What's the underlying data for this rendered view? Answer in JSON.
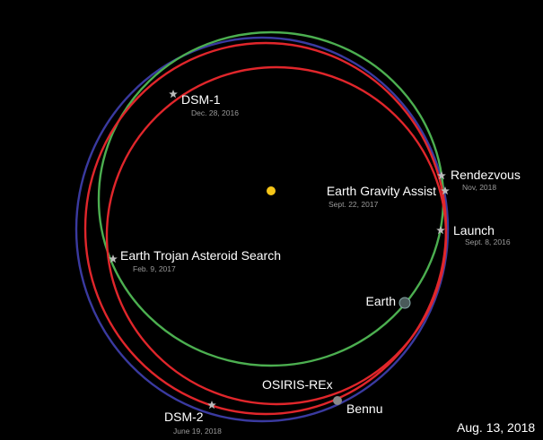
{
  "events": [
    {
      "label": "DSM-1",
      "date": "Dec. 28, 2016"
    },
    {
      "label": "Rendezvous",
      "date": "Nov, 2018"
    },
    {
      "label": "Earth Gravity Assist",
      "date": "Sept. 22, 2017"
    },
    {
      "label": "Launch",
      "date": "Sept. 8, 2016"
    },
    {
      "label": "Earth Trojan Asteroid Search",
      "date": "Feb. 9, 2017"
    },
    {
      "label": "DSM-2",
      "date": "June 19, 2018"
    }
  ],
  "bodies": {
    "earth": "Earth",
    "spacecraft": "OSIRIS-REx",
    "asteroid": "Bennu"
  },
  "current_date": "Aug. 13, 2018"
}
